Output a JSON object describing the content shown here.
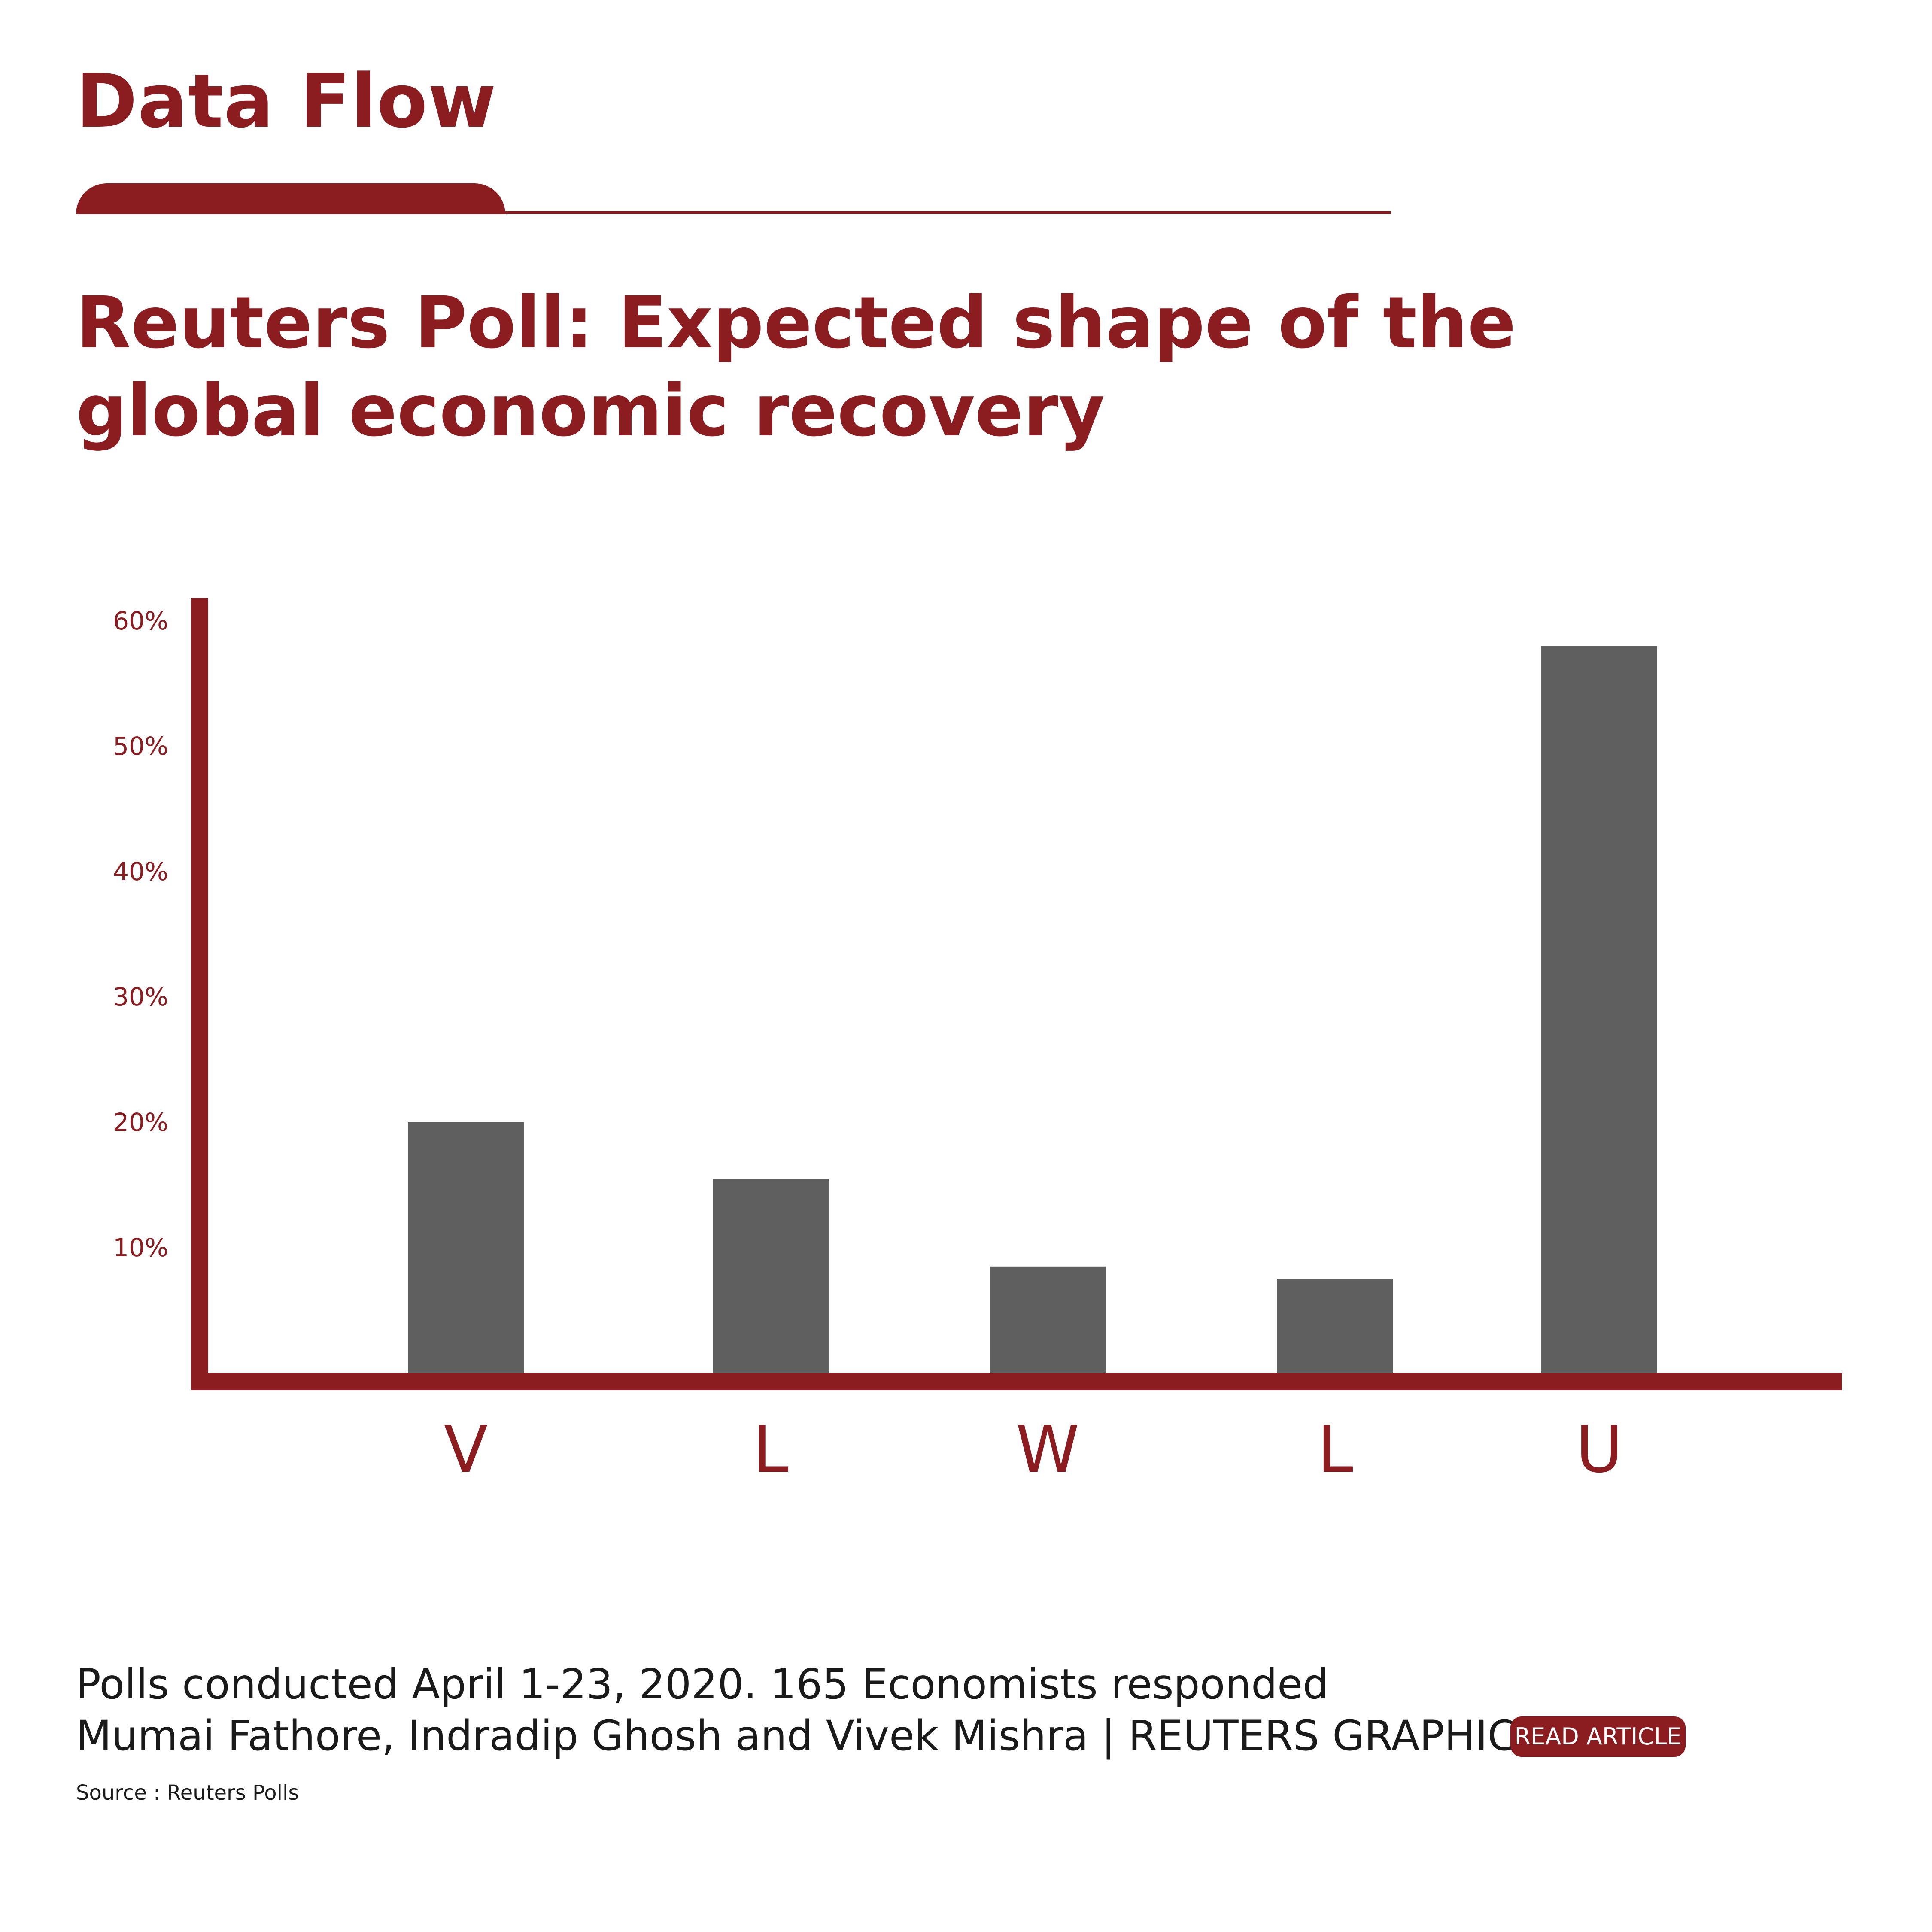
{
  "header": {
    "brand": "Data Flow"
  },
  "colors": {
    "accent": "#8b1c20",
    "bar": "#5f5f5f",
    "text": "#1a1a1a"
  },
  "chart_data": {
    "type": "bar",
    "title": "Reuters Poll: Expected shape of the global economic recovery",
    "categories": [
      "V",
      "L",
      "W",
      "L",
      "U"
    ],
    "values": [
      20,
      15.5,
      8.5,
      7.5,
      58
    ],
    "y_ticks": [
      10,
      20,
      30,
      40,
      50,
      60
    ],
    "y_tick_labels": [
      "10%",
      "20%",
      "30%",
      "40%",
      "50%",
      "60%"
    ],
    "ylim": [
      0,
      64
    ],
    "grid": false,
    "legend": "none"
  },
  "footer": {
    "notes": "Polls conducted April 1-23, 2020. 165 Economists responded",
    "credit": "Mumai Fathore, Indradip Ghosh and Vivek Mishra | REUTERS GRAPHIC",
    "read_article_label": "READ ARTICLE",
    "source": "Source : Reuters Polls"
  }
}
